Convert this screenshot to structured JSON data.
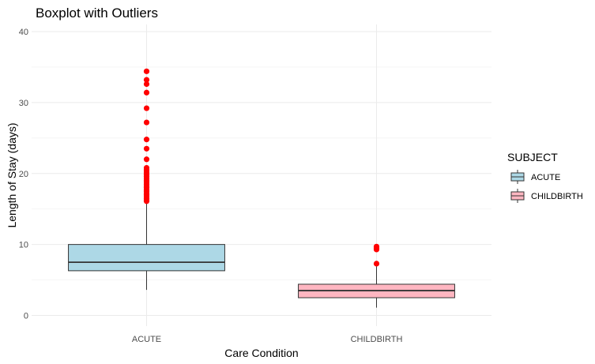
{
  "chart_data": {
    "type": "boxplot",
    "title": "Boxplot with Outliers",
    "xlabel": "Care Condition",
    "ylabel": "Length of Stay (days)",
    "ylim": [
      -1.5,
      41
    ],
    "yticks": [
      0,
      10,
      20,
      30,
      40
    ],
    "categories": [
      "ACUTE",
      "CHILDBIRTH"
    ],
    "grid": true,
    "legend": {
      "title": "SUBJECT",
      "position": "right",
      "entries": [
        "ACUTE",
        "CHILDBIRTH"
      ]
    },
    "series": [
      {
        "name": "ACUTE",
        "color": "#add8e6",
        "whisker_low": 3.6,
        "q1": 6.3,
        "median": 7.5,
        "q3": 10.0,
        "whisker_high": 15.9,
        "outliers": [
          16.1,
          16.3,
          16.5,
          16.8,
          17.0,
          17.2,
          17.5,
          17.7,
          18.0,
          18.2,
          18.5,
          18.8,
          19.0,
          19.3,
          19.6,
          19.9,
          20.2,
          20.5,
          20.8,
          22.0,
          23.5,
          24.8,
          27.2,
          29.2,
          31.4,
          32.6,
          33.2,
          34.4
        ]
      },
      {
        "name": "CHILDBIRTH",
        "color": "#ffb6c1",
        "whisker_low": 1.1,
        "q1": 2.5,
        "median": 3.5,
        "q3": 4.4,
        "whisker_high": 6.9,
        "outliers": [
          7.3,
          9.3,
          9.5,
          9.7
        ]
      }
    ],
    "outlier_color": "#ff0000"
  }
}
